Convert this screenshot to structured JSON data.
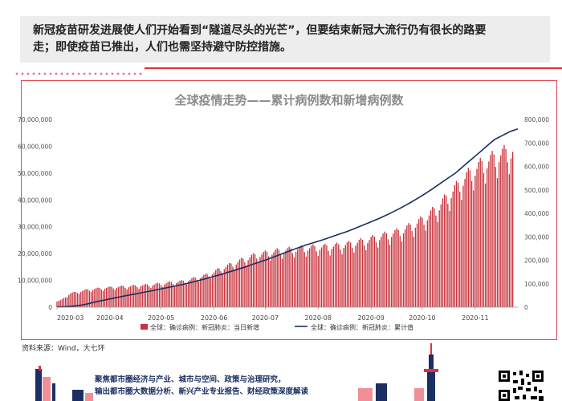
{
  "headline": {
    "line1": "新冠疫苗研发进展使人们开始看到“隧道尽头的光芒”，但要结束新冠大流行仍有很长的路要",
    "line2": "走；即使疫苗已推出，人们也需坚持避守防控措施。"
  },
  "source": "资料来源：Wind，大七环",
  "footer": {
    "line1": "聚焦都市圈经济与产业、城市与空间、政策与治理研究，",
    "line2": "输出都市圈大数据分析、新兴产业专业报告、财经政策深度解读"
  },
  "colors": {
    "bar": "#c8323c",
    "line": "#1b2d62",
    "frame": "#e04a55",
    "title": "#8c8c8c"
  },
  "chart_data": {
    "type": "bar",
    "title": "全球疫情走势——累计病例数和新增病例数",
    "x_ticks": [
      "2020-03",
      "2020-04",
      "2020-05",
      "2020-06",
      "2020-07",
      "2020-08",
      "2020-09",
      "2020-10",
      "2020-11"
    ],
    "y_left": {
      "min": 0,
      "max": 70000000,
      "ticks": [
        "0",
        "10,000,000",
        "20,000,000",
        "30,000,000",
        "40,000,000",
        "50,000,000",
        "60,000,000",
        "70,000,000"
      ]
    },
    "y_right": {
      "min": 0,
      "max": 800000,
      "ticks": [
        "0",
        "100,000",
        "200,000",
        "300,000",
        "400,000",
        "500,000",
        "600,000",
        "700,000",
        "800,000"
      ]
    },
    "x_range": [
      "2020-03-01",
      "2020-11-26"
    ],
    "series": [
      {
        "name": "全球：确诊病例：新冠肺炎：当日新增",
        "type": "bar",
        "axis": "right",
        "values": [
          25000,
          30000,
          45000,
          58000,
          62000,
          66000,
          70000,
          74000,
          76000,
          78000,
          80000,
          82000,
          83000,
          85000,
          86000,
          87000,
          88000,
          89000,
          90000,
          92000,
          93000,
          95000,
          96000,
          98000,
          100000,
          102000,
          104000,
          106000,
          108000,
          110000,
          115000,
          120000,
          125000,
          130000,
          135000,
          142000,
          150000,
          160000,
          168000,
          175000,
          183000,
          190000,
          198000,
          205000,
          212000,
          218000,
          222000,
          226000,
          230000,
          233000,
          236000,
          239000,
          241000,
          243000,
          245000,
          247000,
          249000,
          251000,
          252000,
          253000,
          254000,
          255000,
          256000,
          258000,
          260000,
          262000,
          265000,
          268000,
          272000,
          276000,
          280000,
          285000,
          290000,
          295000,
          300000,
          305000,
          310000,
          315000,
          320000,
          328000,
          336000,
          345000,
          355000,
          365000,
          378000,
          392000,
          408000,
          425000,
          445000,
          465000,
          485000,
          505000,
          525000,
          545000,
          562000,
          578000,
          592000,
          605000,
          615000,
          625000,
          635000,
          645000,
          652000,
          658000,
          662000
        ]
      },
      {
        "name": "全球：确诊病例：新冠肺炎：累计值",
        "type": "line",
        "axis": "left",
        "values": [
          88000,
          170000,
          360000,
          720000,
          1300000,
          2000000,
          2600000,
          3200000,
          3800000,
          4400000,
          4900000,
          5500000,
          6000000,
          6600000,
          7200000,
          7800000,
          8400000,
          9100000,
          9800000,
          10600000,
          11400000,
          12200000,
          13100000,
          14000000,
          14900000,
          15900000,
          16900000,
          17900000,
          19000000,
          20100000,
          21200000,
          22300000,
          23300000,
          24200000,
          25100000,
          26100000,
          27100000,
          28100000,
          29200000,
          30400000,
          31600000,
          32800000,
          34100000,
          35500000,
          37000000,
          38600000,
          40300000,
          42100000,
          44000000,
          46000000,
          48000000,
          50000000,
          52500000,
          55000000,
          57500000,
          60000000,
          62500000,
          64000000,
          65500000,
          66500000
        ]
      }
    ]
  }
}
